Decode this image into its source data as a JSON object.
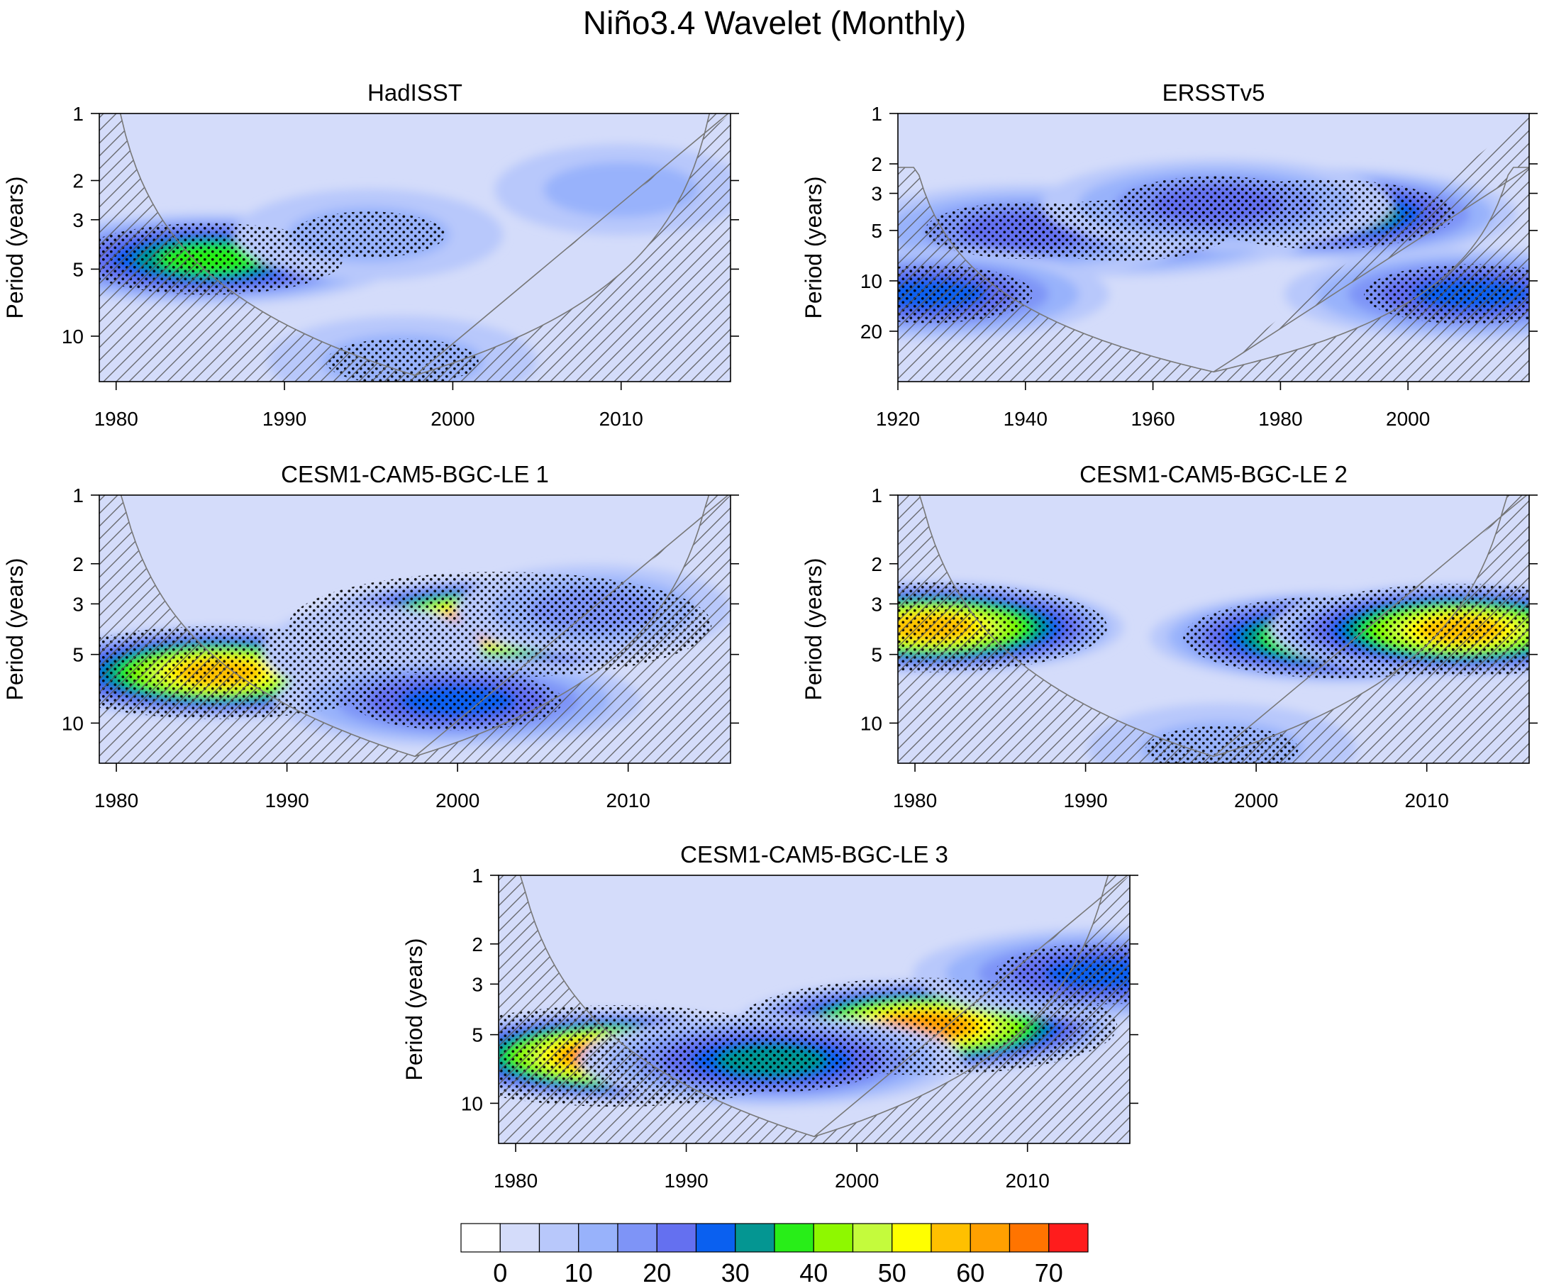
{
  "figure": {
    "title": "Niño3.4 Wavelet (Monthly)"
  },
  "chart_data": [
    {
      "type": "heatmap",
      "title": "HadISST",
      "ylabel": "Period (years)",
      "x_ticks": [
        1980,
        1990,
        2000,
        2010
      ],
      "xlim": [
        1979,
        2016.5
      ],
      "y_ticks": [
        1,
        2,
        3,
        5,
        10
      ],
      "ylim": [
        1,
        16
      ],
      "y_scale": "log",
      "y_inverted": true,
      "coi_min_period": 15,
      "features": [
        {
          "year": 1985.5,
          "period": 4.5,
          "value": 38
        },
        {
          "year": 1995,
          "period": 3.5,
          "value": 14
        },
        {
          "year": 2010,
          "period": 2.2,
          "value": 12
        },
        {
          "year": 1997,
          "period": 13,
          "value": 14
        }
      ]
    },
    {
      "type": "heatmap",
      "title": "ERSSTv5",
      "ylabel": "Period (years)",
      "x_ticks": [
        1920,
        1940,
        1960,
        1980,
        2000
      ],
      "xlim": [
        1920,
        2019
      ],
      "y_ticks": [
        1,
        2,
        3,
        5,
        10,
        20
      ],
      "ylim": [
        1,
        40
      ],
      "y_scale": "log",
      "y_inverted": true,
      "coi_min_period": 35,
      "features": [
        {
          "year": 1987,
          "period": 4,
          "value": 36
        },
        {
          "year": 1955,
          "period": 5,
          "value": 28
        },
        {
          "year": 1940,
          "period": 5,
          "value": 24
        },
        {
          "year": 1925,
          "period": 12,
          "value": 25
        },
        {
          "year": 2010,
          "period": 12,
          "value": 27
        },
        {
          "year": 1970,
          "period": 3.5,
          "value": 24
        }
      ]
    },
    {
      "type": "heatmap",
      "title": "CESM1-CAM5-BGC-LE 1",
      "ylabel": "Period (years)",
      "x_ticks": [
        1980,
        1990,
        2000,
        2010
      ],
      "xlim": [
        1979,
        2016
      ],
      "y_ticks": [
        1,
        2,
        3,
        5,
        10
      ],
      "ylim": [
        1,
        15
      ],
      "y_scale": "log",
      "y_inverted": true,
      "coi_min_period": 14,
      "features": [
        {
          "year": 2002.5,
          "period": 3.7,
          "value": 70
        },
        {
          "year": 1986,
          "period": 6,
          "value": 58
        },
        {
          "year": 1995,
          "period": 4.8,
          "value": 8
        },
        {
          "year": 2008,
          "period": 3.2,
          "value": 15
        },
        {
          "year": 2000,
          "period": 8,
          "value": 26
        }
      ]
    },
    {
      "type": "heatmap",
      "title": "CESM1-CAM5-BGC-LE 2",
      "ylabel": "Period (years)",
      "x_ticks": [
        1980,
        1990,
        2000,
        2010
      ],
      "xlim": [
        1979,
        2016
      ],
      "y_ticks": [
        1,
        2,
        3,
        5,
        10
      ],
      "ylim": [
        1,
        15
      ],
      "y_scale": "log",
      "y_inverted": true,
      "coi_min_period": 14,
      "features": [
        {
          "year": 1981,
          "period": 3.8,
          "value": 55
        },
        {
          "year": 2005,
          "period": 4.2,
          "value": 48
        },
        {
          "year": 2012,
          "period": 3.9,
          "value": 57
        },
        {
          "year": 1998,
          "period": 13,
          "value": 14
        }
      ]
    },
    {
      "type": "heatmap",
      "title": "CESM1-CAM5-BGC-LE 3",
      "ylabel": "Period (years)",
      "x_ticks": [
        1980,
        1990,
        2000,
        2010
      ],
      "xlim": [
        1979,
        2016
      ],
      "y_ticks": [
        1,
        2,
        3,
        5,
        10
      ],
      "ylim": [
        1,
        15
      ],
      "y_scale": "log",
      "y_inverted": true,
      "coi_min_period": 14,
      "features": [
        {
          "year": 1986,
          "period": 6.2,
          "value": 66
        },
        {
          "year": 2004,
          "period": 4.6,
          "value": 62
        },
        {
          "year": 2014.5,
          "period": 2.7,
          "value": 28
        },
        {
          "year": 1995,
          "period": 6.5,
          "value": 30
        }
      ]
    }
  ],
  "colorbar": {
    "labels": [
      "0",
      "10",
      "20",
      "30",
      "40",
      "50",
      "60",
      "70"
    ],
    "label_values": [
      0,
      10,
      20,
      30,
      40,
      50,
      60,
      70
    ],
    "levels": [
      -5,
      0,
      5,
      10,
      15,
      20,
      25,
      30,
      35,
      40,
      45,
      50,
      55,
      60,
      65,
      70,
      75
    ],
    "colors": [
      "#ffffff",
      "#d4dcfa",
      "#b8c8fb",
      "#98b2fb",
      "#7e94f7",
      "#6470f0",
      "#0a60f0",
      "#049692",
      "#28ee18",
      "#8ef800",
      "#c4fb3c",
      "#ffff00",
      "#ffc000",
      "#ffa000",
      "#ff7400",
      "#ff1c1c"
    ]
  }
}
